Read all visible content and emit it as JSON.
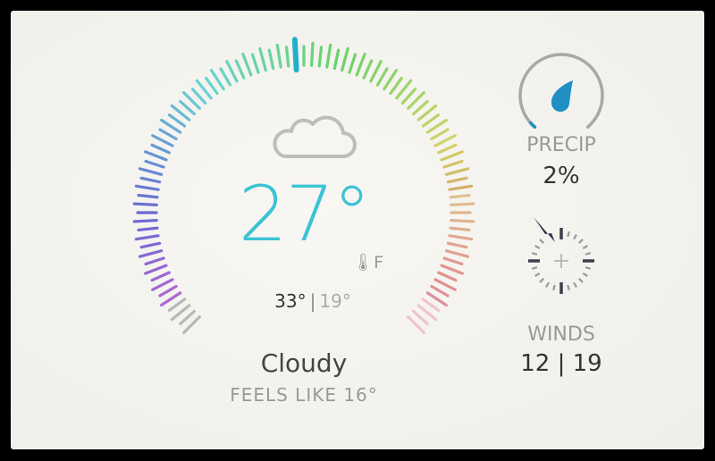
{
  "weather": {
    "temperature": "27°",
    "unit": "F",
    "high": "33°",
    "low": "19°",
    "separator": "|",
    "condition": "Cloudy",
    "feels_like": "FEELS LIKE 16°",
    "condition_icon": "cloud-icon"
  },
  "precip": {
    "label": "PRECIP",
    "value": "2%",
    "fraction": 0.02,
    "icon": "raindrop-icon",
    "accent": "#1f8fc4"
  },
  "winds": {
    "label": "WINDS",
    "value": "12 | 19",
    "direction_icon": "compass-needle-icon",
    "direction": "NNW"
  },
  "colors": {
    "temperature": "#3cc3d5",
    "gauge_marker": "#1fb0cc"
  }
}
